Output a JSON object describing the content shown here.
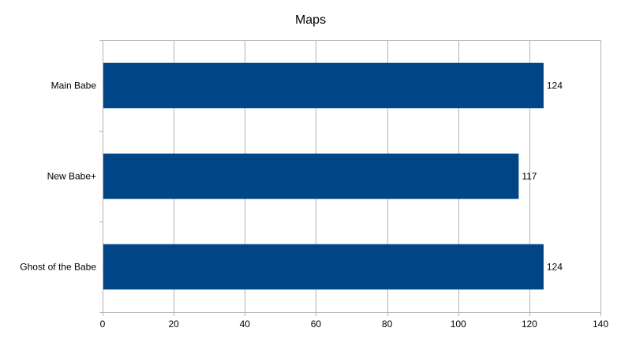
{
  "chart_data": {
    "type": "bar",
    "orientation": "horizontal",
    "title": "Maps",
    "xlabel": "",
    "ylabel": "",
    "categories": [
      "Main Babe",
      "New Babe+",
      "Ghost of the Babe"
    ],
    "values": [
      124,
      117,
      124
    ],
    "data_labels": [
      "124",
      "117",
      "124"
    ],
    "xlim": [
      0,
      140
    ],
    "xticks": [
      0,
      20,
      40,
      60,
      80,
      100,
      120,
      140
    ],
    "xtick_labels": [
      "0",
      "20",
      "40",
      "60",
      "80",
      "100",
      "120",
      "140"
    ],
    "grid": true,
    "legend": "none",
    "colors": {
      "bar": "#004586",
      "grid": "#b3b3b3",
      "axis": "#b3b3b3"
    }
  }
}
